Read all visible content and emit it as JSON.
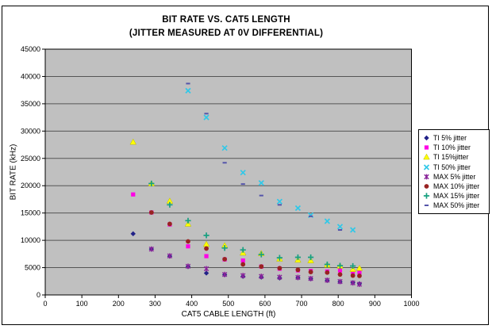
{
  "frame_border_color": "#000000",
  "chart_data": {
    "type": "scatter",
    "title": "BIT RATE VS. CAT5 LENGTH",
    "subtitle": "(JITTER MEASURED AT 0V DIFFERENTIAL)",
    "xlabel": "CAT5 CABLE LENGTH (ft)",
    "ylabel": "BIT RATE (kHz)",
    "xlim": [
      0,
      1000
    ],
    "ylim": [
      0,
      45000
    ],
    "x_ticks": [
      0,
      100,
      200,
      300,
      400,
      500,
      600,
      700,
      800,
      900,
      1000
    ],
    "y_ticks": [
      0,
      5000,
      10000,
      15000,
      20000,
      25000,
      30000,
      35000,
      40000,
      45000
    ],
    "grid": "horizontal",
    "plot_bg": "#C0C0C0",
    "gridline_color": "#555555",
    "legend_position": "right",
    "series": [
      {
        "name": "TI 5% jitter",
        "marker": "diamond",
        "color": "#222288",
        "points": [
          [
            240,
            11200
          ],
          [
            290,
            8400
          ],
          [
            340,
            7100
          ],
          [
            390,
            5200
          ],
          [
            440,
            4000
          ],
          [
            490,
            3700
          ],
          [
            540,
            3400
          ],
          [
            590,
            3250
          ],
          [
            640,
            3100
          ],
          [
            690,
            3150
          ],
          [
            725,
            2950
          ],
          [
            770,
            2650
          ],
          [
            805,
            2400
          ],
          [
            840,
            2250
          ],
          [
            858,
            2050
          ]
        ]
      },
      {
        "name": "TI 10% jitter",
        "marker": "square",
        "color": "#FF00E6",
        "points": [
          [
            240,
            18400
          ],
          [
            290,
            15100
          ],
          [
            340,
            12900
          ],
          [
            390,
            8900
          ],
          [
            440,
            7100
          ],
          [
            490,
            6500
          ],
          [
            540,
            6300
          ],
          [
            590,
            5200
          ],
          [
            640,
            4800
          ],
          [
            690,
            4500
          ],
          [
            725,
            4400
          ],
          [
            770,
            4300
          ],
          [
            805,
            4500
          ],
          [
            840,
            4200
          ],
          [
            858,
            4100
          ]
        ]
      },
      {
        "name": "TI 15%jitter",
        "marker": "triangle",
        "color": "#FFFF00",
        "points": [
          [
            240,
            28000
          ],
          [
            290,
            20400
          ],
          [
            340,
            17200
          ],
          [
            390,
            13000
          ],
          [
            440,
            9300
          ],
          [
            490,
            9050
          ],
          [
            540,
            7700
          ],
          [
            590,
            7600
          ],
          [
            640,
            6600
          ],
          [
            690,
            6400
          ],
          [
            725,
            6300
          ],
          [
            770,
            5500
          ],
          [
            805,
            5300
          ],
          [
            840,
            4700
          ],
          [
            858,
            4900
          ]
        ]
      },
      {
        "name": "TI 50% jitter",
        "marker": "x",
        "color": "#30C8E8",
        "points": [
          [
            390,
            37400
          ],
          [
            440,
            32500
          ],
          [
            490,
            26900
          ],
          [
            540,
            22400
          ],
          [
            590,
            20500
          ],
          [
            640,
            17100
          ],
          [
            690,
            15900
          ],
          [
            725,
            14600
          ],
          [
            770,
            13500
          ],
          [
            805,
            12500
          ],
          [
            840,
            11900
          ]
        ]
      },
      {
        "name": "MAX 5% jitter",
        "marker": "star",
        "color": "#882299",
        "points": [
          [
            290,
            8400
          ],
          [
            340,
            7150
          ],
          [
            390,
            5250
          ],
          [
            440,
            4800
          ],
          [
            490,
            3750
          ],
          [
            540,
            3550
          ],
          [
            590,
            3400
          ],
          [
            640,
            3250
          ],
          [
            690,
            3200
          ],
          [
            725,
            3000
          ],
          [
            770,
            2700
          ],
          [
            805,
            2450
          ],
          [
            840,
            2200
          ],
          [
            858,
            1950
          ]
        ]
      },
      {
        "name": "MAX 10% jitter",
        "marker": "circle",
        "color": "#992222",
        "points": [
          [
            290,
            15100
          ],
          [
            340,
            13000
          ],
          [
            390,
            9800
          ],
          [
            440,
            8500
          ],
          [
            490,
            6550
          ],
          [
            540,
            5600
          ],
          [
            590,
            5200
          ],
          [
            640,
            4900
          ],
          [
            690,
            4600
          ],
          [
            725,
            4200
          ],
          [
            770,
            4100
          ],
          [
            805,
            3750
          ],
          [
            840,
            3550
          ],
          [
            858,
            3500
          ]
        ]
      },
      {
        "name": "MAX 15% jitter",
        "marker": "plus",
        "color": "#18A080",
        "points": [
          [
            290,
            20400
          ],
          [
            340,
            16500
          ],
          [
            390,
            13600
          ],
          [
            440,
            10900
          ],
          [
            490,
            8600
          ],
          [
            540,
            8250
          ],
          [
            590,
            7400
          ],
          [
            640,
            6800
          ],
          [
            690,
            6900
          ],
          [
            725,
            6900
          ],
          [
            770,
            5600
          ],
          [
            805,
            5350
          ],
          [
            840,
            5300
          ]
        ]
      },
      {
        "name": "MAX 50% jitter",
        "marker": "dash",
        "color": "#5555AA",
        "points": [
          [
            390,
            38700
          ],
          [
            440,
            33200
          ],
          [
            490,
            24200
          ],
          [
            540,
            20300
          ],
          [
            590,
            18200
          ],
          [
            640,
            16500
          ],
          [
            725,
            14400
          ],
          [
            805,
            11900
          ]
        ]
      }
    ]
  }
}
